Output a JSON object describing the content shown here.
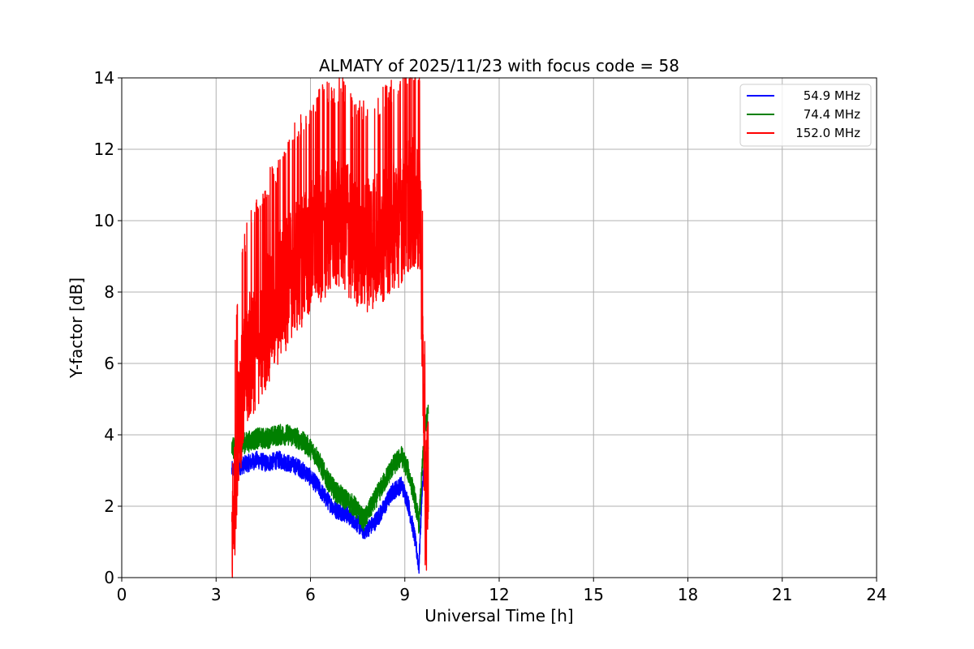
{
  "chart_data": {
    "type": "line",
    "title": "ALMATY of 2025/11/23 with focus code = 58",
    "xlabel": "Universal Time [h]",
    "ylabel": "Y-factor [dB]",
    "xlim": [
      0,
      24
    ],
    "ylim": [
      0,
      14
    ],
    "xticks": [
      0,
      3,
      6,
      9,
      12,
      15,
      18,
      21,
      24
    ],
    "yticks": [
      0,
      2,
      4,
      6,
      8,
      10,
      12,
      14
    ],
    "grid": true,
    "legend_position": "top-right",
    "series": [
      {
        "name": "54.9 MHz",
        "color": "#0000ff",
        "x": [
          3.5,
          3.7,
          4.0,
          4.3,
          4.6,
          5.0,
          5.3,
          5.6,
          5.9,
          6.2,
          6.5,
          6.8,
          7.1,
          7.4,
          7.7,
          8.0,
          8.3,
          8.6,
          8.9,
          9.1,
          9.3,
          9.45,
          9.55,
          9.65,
          9.75
        ],
        "y": [
          3.0,
          3.1,
          3.2,
          3.3,
          3.2,
          3.3,
          3.2,
          3.1,
          2.9,
          2.6,
          2.2,
          1.9,
          1.8,
          1.6,
          1.3,
          1.5,
          1.9,
          2.4,
          2.6,
          2.1,
          1.2,
          0.3,
          2.5,
          3.3,
          3.5
        ],
        "amplitude": 0.25
      },
      {
        "name": "74.4 MHz",
        "color": "#008000",
        "x": [
          3.5,
          3.7,
          4.0,
          4.3,
          4.6,
          5.0,
          5.3,
          5.6,
          5.9,
          6.2,
          6.5,
          6.8,
          7.1,
          7.4,
          7.7,
          8.0,
          8.3,
          8.6,
          8.9,
          9.1,
          9.3,
          9.45,
          9.55,
          9.65,
          9.75
        ],
        "y": [
          3.6,
          3.7,
          3.8,
          3.9,
          3.9,
          4.0,
          4.0,
          3.9,
          3.7,
          3.4,
          2.8,
          2.4,
          2.2,
          2.0,
          1.6,
          2.1,
          2.6,
          3.1,
          3.4,
          3.0,
          2.3,
          1.5,
          3.0,
          4.3,
          4.6
        ],
        "amplitude": 0.3
      },
      {
        "name": "152.0 MHz",
        "color": "#ff0000",
        "x": [
          3.5,
          3.6,
          3.7,
          3.9,
          4.1,
          4.3,
          4.6,
          4.9,
          5.2,
          5.5,
          5.8,
          6.1,
          6.4,
          6.7,
          7.0,
          7.3,
          7.6,
          7.9,
          8.2,
          8.5,
          8.8,
          9.1,
          9.3,
          9.5,
          9.6,
          9.65,
          9.75
        ],
        "y": [
          0.8,
          2.5,
          4.5,
          5.5,
          6.3,
          6.6,
          7.2,
          7.6,
          8.2,
          8.6,
          9.0,
          9.3,
          9.7,
          9.8,
          10.0,
          9.5,
          9.4,
          9.3,
          9.5,
          9.8,
          10.0,
          10.4,
          10.5,
          10.0,
          4.5,
          1.5,
          3.0
        ],
        "amplitude": 2.1
      }
    ]
  }
}
